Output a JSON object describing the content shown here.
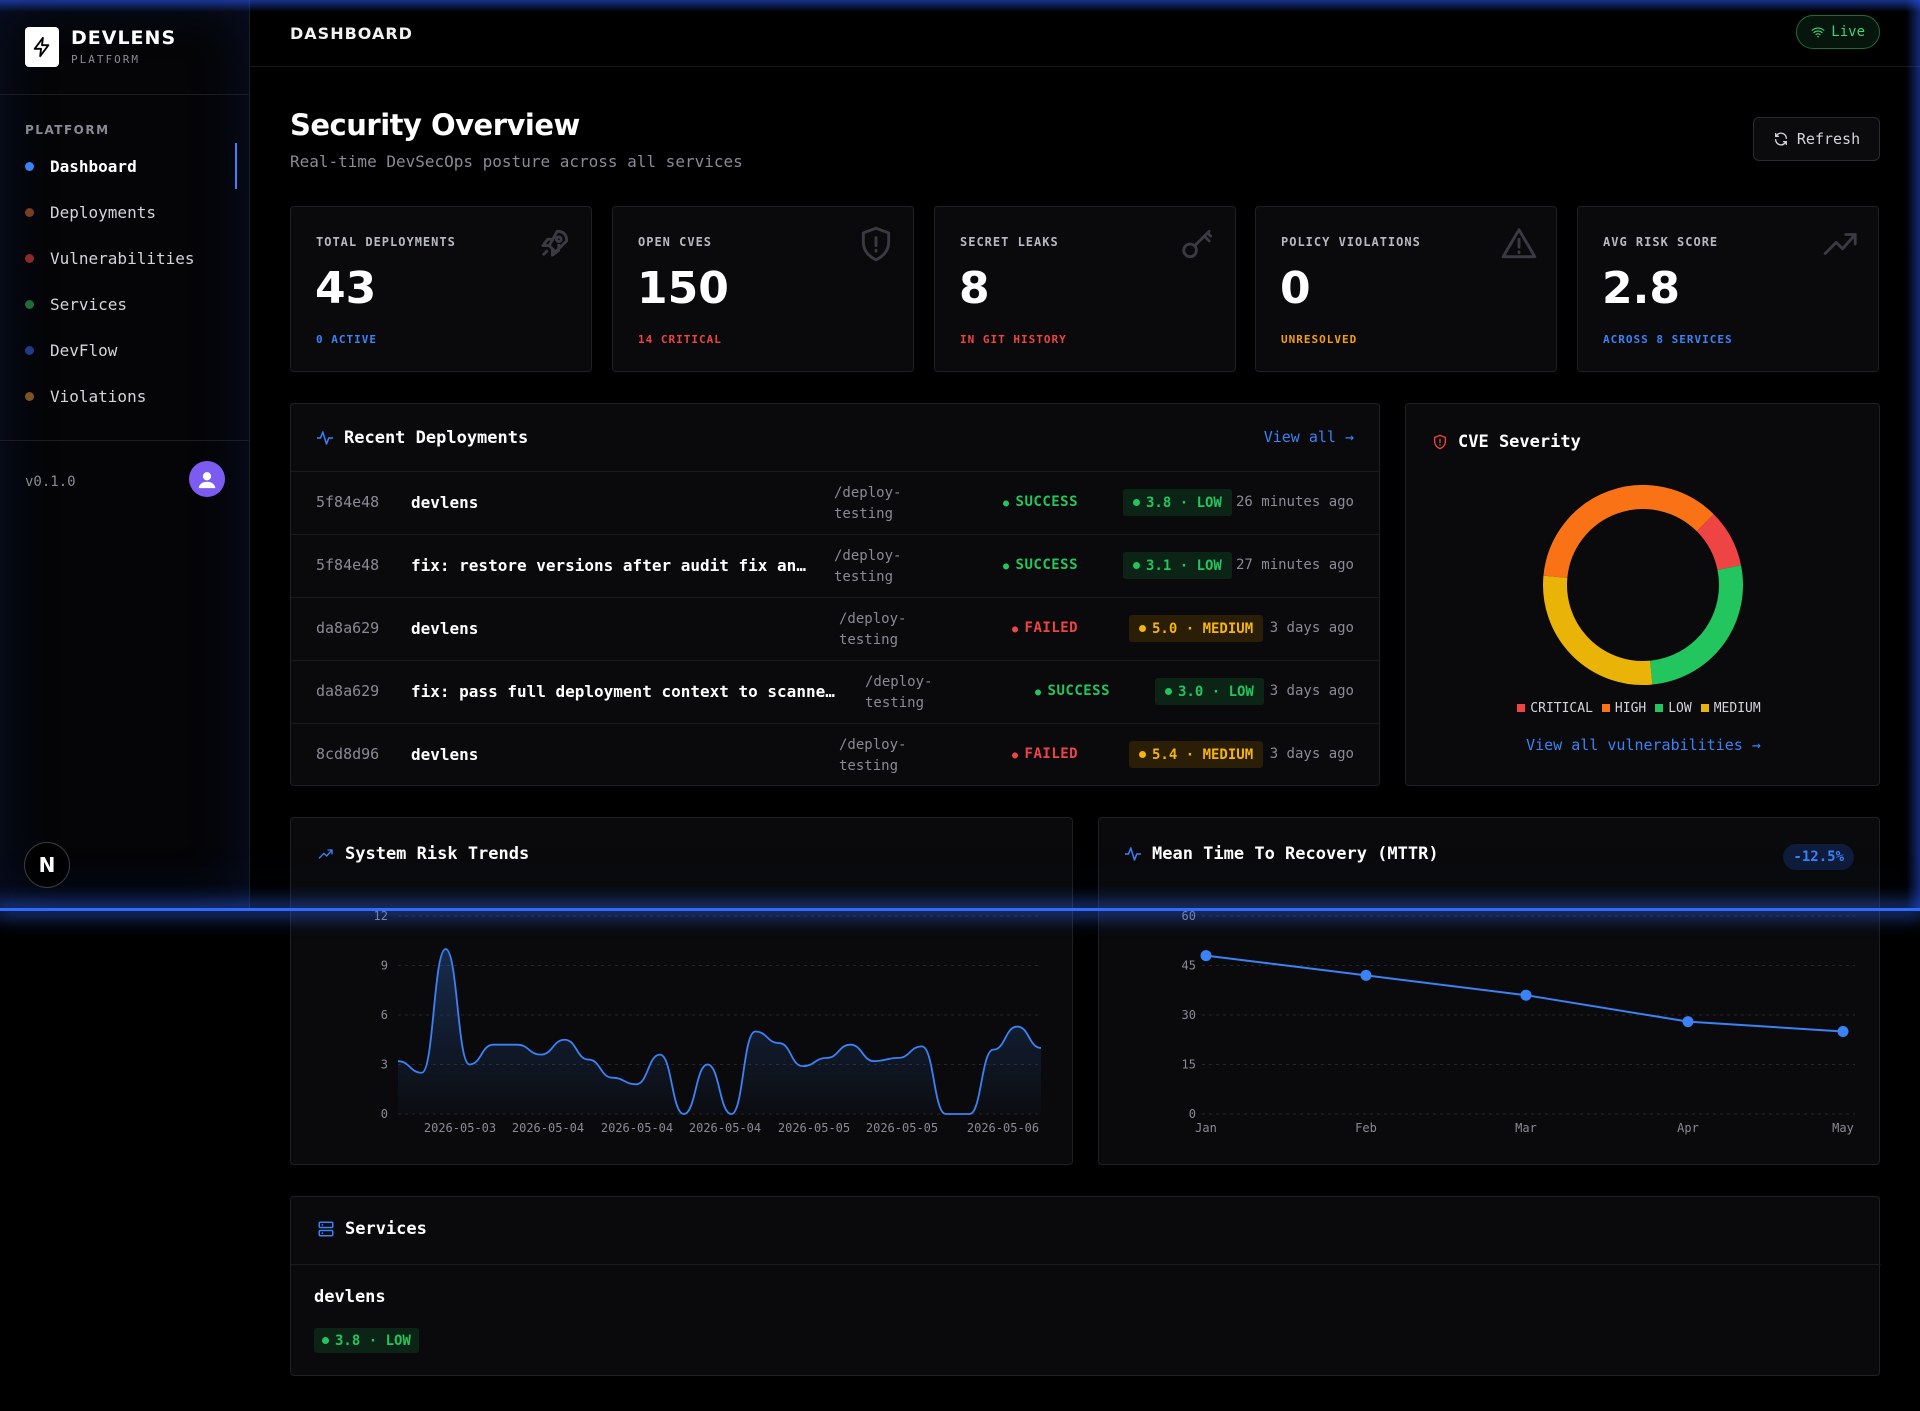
{
  "brand": {
    "name": "DEVLENS",
    "sub": "PLATFORM"
  },
  "sidebar": {
    "section": "PLATFORM",
    "items": [
      {
        "label": "Dashboard",
        "dot": "#3b82f6",
        "active": true
      },
      {
        "label": "Deployments",
        "dot": "#7a3d22"
      },
      {
        "label": "Vulnerabilities",
        "dot": "#8b2a2a"
      },
      {
        "label": "Services",
        "dot": "#1f6b3a"
      },
      {
        "label": "DevFlow",
        "dot": "#1f3a8b"
      },
      {
        "label": "Violations",
        "dot": "#7a5522"
      }
    ],
    "version": "v0.1.0",
    "badge": "N"
  },
  "topbar": {
    "title": "DASHBOARD",
    "live": "Live"
  },
  "header": {
    "title": "Security Overview",
    "subtitle": "Real-time DevSecOps posture across all services",
    "refresh": "Refresh"
  },
  "stats": [
    {
      "label": "TOTAL DEPLOYMENTS",
      "value": "43",
      "foot": "0 ACTIVE",
      "foot_color": "#3b82f6",
      "icon": "rocket-icon"
    },
    {
      "label": "OPEN CVES",
      "value": "150",
      "foot": "14 CRITICAL",
      "foot_color": "#ef4444",
      "icon": "shield-alert-icon"
    },
    {
      "label": "SECRET LEAKS",
      "value": "8",
      "foot": "IN GIT HISTORY",
      "foot_color": "#ef4444",
      "icon": "key-icon"
    },
    {
      "label": "POLICY VIOLATIONS",
      "value": "0",
      "foot": "UNRESOLVED",
      "foot_color": "#f59e0b",
      "icon": "warning-icon"
    },
    {
      "label": "AVG RISK SCORE",
      "value": "2.8",
      "foot": "ACROSS 8 SERVICES",
      "foot_color": "#3b82f6",
      "icon": "trending-up-icon"
    }
  ],
  "recent": {
    "title": "Recent Deployments",
    "view_all": "View all →",
    "rows": [
      {
        "hash": "5f84e48",
        "message": "devlens",
        "path": "/deploy-testing",
        "status": "SUCCESS",
        "risk": "3.8 · LOW",
        "level": "low",
        "time": "26 minutes ago"
      },
      {
        "hash": "5f84e48",
        "message": "fix: restore versions after audit fix an…",
        "path": "/deploy-testing",
        "status": "SUCCESS",
        "risk": "3.1 · LOW",
        "level": "low",
        "time": "27 minutes ago"
      },
      {
        "hash": "da8a629",
        "message": "devlens",
        "path": "/deploy-testing",
        "status": "FAILED",
        "risk": "5.0 · MEDIUM",
        "level": "medium",
        "time": "3 days ago"
      },
      {
        "hash": "da8a629",
        "message": "fix: pass full deployment context to scanner…",
        "path": "/deploy-testing",
        "status": "SUCCESS",
        "risk": "3.0 · LOW",
        "level": "low",
        "time": "3 days ago"
      },
      {
        "hash": "8cd8d96",
        "message": "devlens",
        "path": "/deploy-testing",
        "status": "FAILED",
        "risk": "5.4 · MEDIUM",
        "level": "medium",
        "time": "3 days ago"
      }
    ]
  },
  "cve": {
    "title": "CVE Severity",
    "legend": [
      {
        "label": "CRITICAL",
        "color": "#ef4444"
      },
      {
        "label": "HIGH",
        "color": "#f97316"
      },
      {
        "label": "LOW",
        "color": "#22c55e"
      },
      {
        "label": "MEDIUM",
        "color": "#eab308"
      }
    ],
    "link": "View all vulnerabilities →"
  },
  "risk_trends": {
    "title": "System Risk Trends"
  },
  "mttr": {
    "title": "Mean Time To Recovery (MTTR)",
    "delta": "-12.5%"
  },
  "services": {
    "title": "Services",
    "items": [
      {
        "name": "devlens",
        "risk": "3.8 · LOW"
      }
    ]
  },
  "chart_data": [
    {
      "type": "pie",
      "title": "CVE Severity",
      "categories": [
        "CRITICAL",
        "HIGH",
        "LOW",
        "MEDIUM"
      ],
      "values": [
        14,
        54,
        40,
        42
      ],
      "colors": [
        "#ef4444",
        "#f97316",
        "#22c55e",
        "#eab308"
      ]
    },
    {
      "type": "area",
      "title": "System Risk Trends",
      "ylim": [
        0,
        12
      ],
      "yticks": [
        0,
        3,
        6,
        9,
        12
      ],
      "xticks": [
        "2026-05-03",
        "2026-05-04",
        "2026-05-04",
        "2026-05-04",
        "2026-05-05",
        "2026-05-05",
        "2026-05-06"
      ],
      "values": [
        3.2,
        2.5,
        10.0,
        3.0,
        4.2,
        4.2,
        3.6,
        4.5,
        3.3,
        2.2,
        1.8,
        3.6,
        0.0,
        3.0,
        0.0,
        5.0,
        4.3,
        2.9,
        3.4,
        4.2,
        3.2,
        3.4,
        4.1,
        0.0,
        0.0,
        3.9,
        5.3,
        4.0
      ],
      "color": "#3b82f6"
    },
    {
      "type": "line",
      "title": "Mean Time To Recovery (MTTR)",
      "categories": [
        "Jan",
        "Feb",
        "Mar",
        "Apr",
        "May"
      ],
      "values": [
        48,
        42,
        36,
        28,
        25
      ],
      "ylim": [
        0,
        60
      ],
      "yticks": [
        0,
        15,
        30,
        45,
        60
      ],
      "color": "#3b82f6"
    }
  ]
}
